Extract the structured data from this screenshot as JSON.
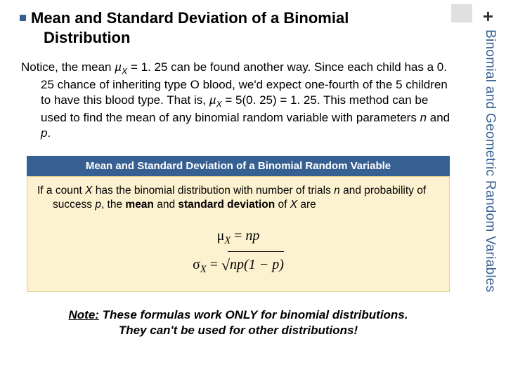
{
  "corner": {
    "plus": "+"
  },
  "sidebar": {
    "label": "Binomial and Geometric Random Variables"
  },
  "heading": {
    "lead": "Mean",
    "rest_line1": " and Standard Deviation of a Binomial",
    "line2": "Distribution"
  },
  "body": {
    "prefix": "Notice, the mean ",
    "mu": "µ",
    "muSub": "X",
    "mid1": " = 1. 25 can be found another way. Since each child has a 0. 25 chance of inheriting type O blood, we'd expect one-fourth of the 5 children to have this blood type.  That is, ",
    "mu2": "µ",
    "muSub2": "X",
    "mid2": " = 5(0. 25) = 1. 25. This method can be used to find the mean of any binomial random variable with parameters ",
    "n": "n",
    "and": " and ",
    "p": "p",
    "end": "."
  },
  "box": {
    "title": "Mean and Standard Deviation of a Binomial Random Variable",
    "intro_prefix": "If a count ",
    "X": "X",
    "intro_mid1": " has the binomial distribution with number of trials ",
    "n": "n",
    "intro_mid2": " and probability of success ",
    "p": "p",
    "intro_mid3": ", the ",
    "bold_mean": "mean",
    "intro_mid4": " and ",
    "bold_sd": "standard deviation",
    "intro_mid5": " of ",
    "X2": "X",
    "intro_end": " are",
    "formulas": {
      "mu": "μ",
      "sub": "X",
      "eq": " = ",
      "np": "np",
      "sigma": "σ",
      "rad_expr": "np(1 − p)"
    }
  },
  "note": {
    "label": "Note:",
    "rest1": " These formulas work ONLY for binomial distributions.",
    "line2": "They can't be used for other distributions!"
  },
  "colors": {
    "accent": "#376092",
    "box_bg": "#fdf2d0",
    "corner_gray": "#e0e0e0"
  }
}
